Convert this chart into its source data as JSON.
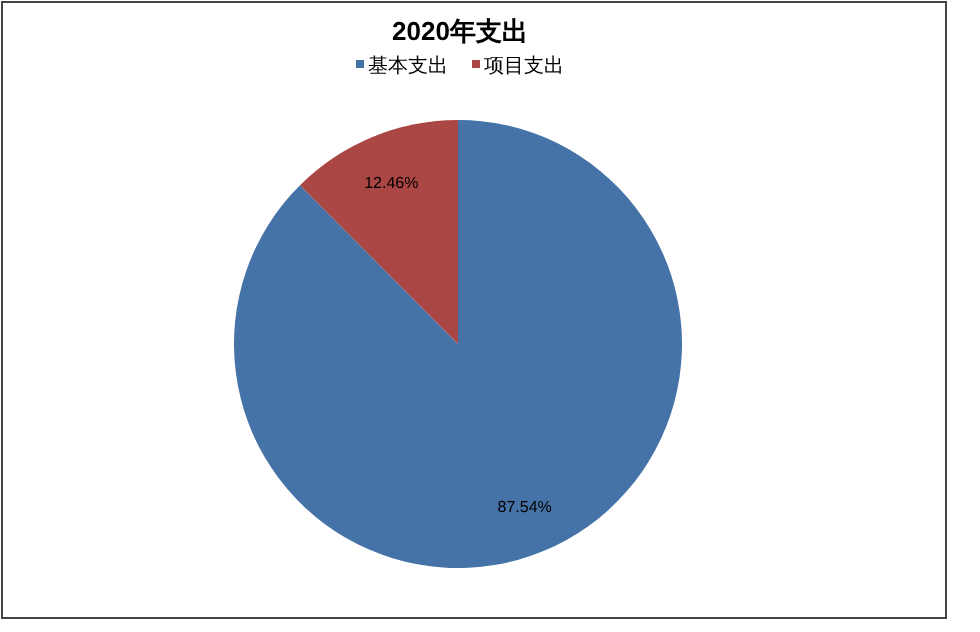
{
  "chart_data": {
    "type": "pie",
    "title": "2020年支出",
    "legend": "top",
    "data_labels": true,
    "categories": [
      "基本支出",
      "项目支出"
    ],
    "values": [
      87.54,
      12.46
    ],
    "value_labels": [
      "87.54%",
      "12.46%"
    ],
    "colors": [
      "#4572a7",
      "#aa4643"
    ]
  }
}
